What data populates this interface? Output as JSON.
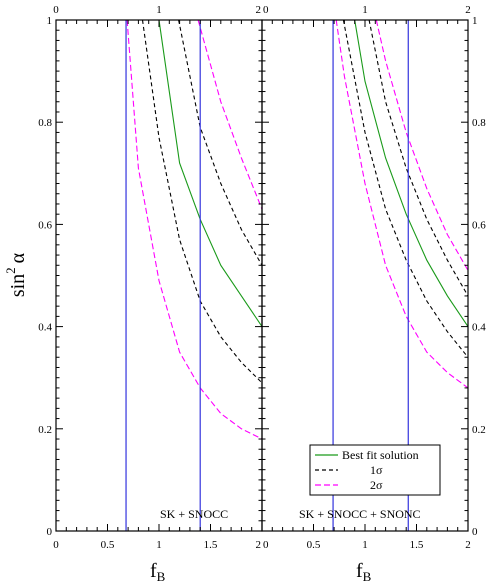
{
  "chart_data": {
    "type": "line",
    "xlabel": "f",
    "xlabel_sub": "B",
    "ylabel": "sin",
    "ylabel_sup": "2",
    "ylabel_greek": "α",
    "xlim": [
      0,
      2
    ],
    "ylim": [
      0,
      1
    ],
    "x_ticks": [
      "0",
      "0.5",
      "1",
      "1.5",
      "2"
    ],
    "x_ticks_top": [
      "0",
      "1",
      "2"
    ],
    "y_ticks_left": [
      "0",
      "0.2",
      "0.4",
      "0.6",
      "0.8",
      "1"
    ],
    "y_ticks_right": [
      "0",
      "0.2",
      "0.4",
      "0.6",
      "0.8",
      "1"
    ],
    "colors": {
      "best": "#1a9a1a",
      "one_sigma": "#000000",
      "two_sigma": "#ff00ff",
      "vline": "#3333dd"
    },
    "legend": {
      "placement": "bottom-right",
      "entries": [
        "Best fit solution",
        "1",
        "2"
      ],
      "sigma_symbol": "σ"
    },
    "panels": [
      {
        "label": "SK + SNOCC",
        "vlines": [
          0.68,
          1.4
        ],
        "series": [
          {
            "kind": "best",
            "x": [
              1.0,
              1.2,
              1.4,
              1.6,
              1.8,
              2.0
            ],
            "y": [
              1.0,
              0.72,
              0.61,
              0.52,
              0.46,
              0.4
            ]
          },
          {
            "kind": "one_sigma",
            "x": [
              1.19,
              1.4,
              1.6,
              1.8,
              2.0
            ],
            "y": [
              1.0,
              0.79,
              0.68,
              0.59,
              0.52
            ]
          },
          {
            "kind": "one_sigma",
            "x": [
              0.84,
              1.0,
              1.2,
              1.4,
              1.6,
              1.8,
              2.0
            ],
            "y": [
              1.0,
              0.77,
              0.57,
              0.45,
              0.38,
              0.33,
              0.29
            ]
          },
          {
            "kind": "two_sigma",
            "x": [
              1.38,
              1.6,
              1.8,
              2.0
            ],
            "y": [
              1.0,
              0.84,
              0.73,
              0.63
            ]
          },
          {
            "kind": "two_sigma",
            "x": [
              0.69,
              0.8,
              1.0,
              1.2,
              1.4,
              1.6,
              1.8,
              2.0
            ],
            "y": [
              1.0,
              0.71,
              0.49,
              0.35,
              0.28,
              0.23,
              0.2,
              0.18
            ]
          }
        ]
      },
      {
        "label": "SK + SNOCC + SNONC",
        "vlines": [
          0.69,
          1.42
        ],
        "series": [
          {
            "kind": "best",
            "x": [
              0.9,
              1.0,
              1.2,
              1.4,
              1.6,
              1.8,
              2.0
            ],
            "y": [
              1.0,
              0.88,
              0.73,
              0.62,
              0.53,
              0.46,
              0.4
            ]
          },
          {
            "kind": "one_sigma",
            "x": [
              1.04,
              1.2,
              1.4,
              1.6,
              1.8,
              2.0
            ],
            "y": [
              1.0,
              0.84,
              0.71,
              0.61,
              0.53,
              0.46
            ]
          },
          {
            "kind": "one_sigma",
            "x": [
              0.79,
              1.0,
              1.2,
              1.4,
              1.6,
              1.8,
              2.0
            ],
            "y": [
              1.0,
              0.78,
              0.63,
              0.53,
              0.45,
              0.39,
              0.34
            ]
          },
          {
            "kind": "two_sigma",
            "x": [
              1.11,
              1.2,
              1.4,
              1.6,
              1.8,
              2.0
            ],
            "y": [
              1.0,
              0.92,
              0.78,
              0.67,
              0.58,
              0.51
            ]
          },
          {
            "kind": "two_sigma",
            "x": [
              0.72,
              0.8,
              1.0,
              1.2,
              1.4,
              1.6,
              1.8,
              2.0
            ],
            "y": [
              1.0,
              0.89,
              0.68,
              0.52,
              0.42,
              0.35,
              0.31,
              0.28
            ]
          }
        ]
      }
    ]
  }
}
